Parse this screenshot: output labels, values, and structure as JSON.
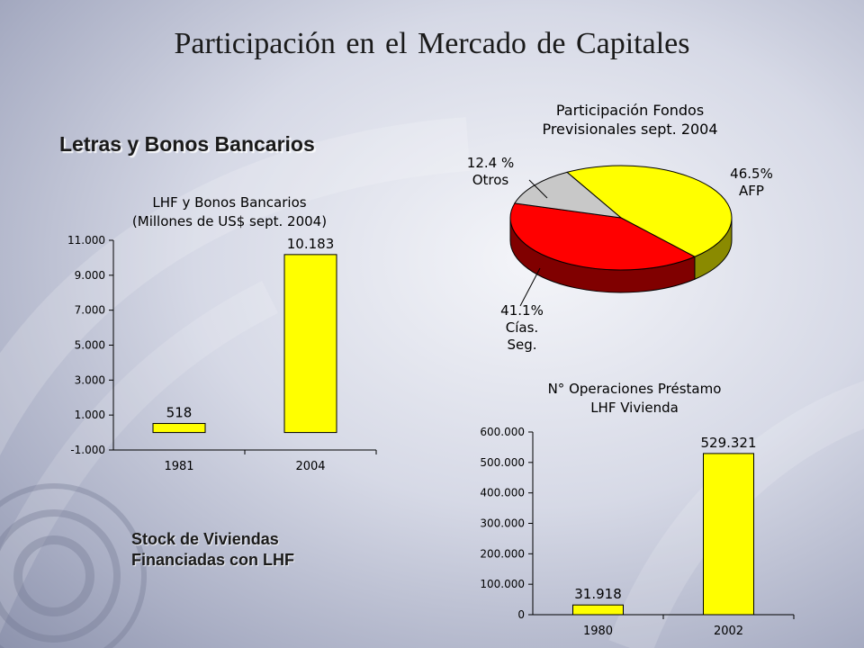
{
  "page": {
    "title": "Participación en el Mercado de Capitales",
    "section_title": "Letras y Bonos Bancarios",
    "stock_label_line1": "Stock de Viviendas",
    "stock_label_line2": "Financiadas con LHF"
  },
  "chart_data": [
    {
      "type": "bar",
      "title_line1": "LHF y Bonos Bancarios",
      "title_line2": "(Millones de  US$ sept. 2004)",
      "categories": [
        "1981",
        "2004"
      ],
      "values": [
        518,
        10183
      ],
      "value_labels": [
        "518",
        "10.183"
      ],
      "ylim": [
        -1000,
        11000
      ],
      "yticks": [
        -1000,
        1000,
        3000,
        5000,
        7000,
        9000,
        11000
      ],
      "ytick_labels": [
        "-1.000",
        "1.000",
        "3.000",
        "5.000",
        "7.000",
        "9.000",
        "11.000"
      ],
      "bar_color": "#ffff00",
      "grid": false
    },
    {
      "type": "pie",
      "title_line1": "Participación Fondos",
      "title_line2": "Previsionales sept. 2004",
      "slices": [
        {
          "label_line1": "46.5%",
          "label_line2": "AFP",
          "value": 46.5,
          "color": "#ffff00",
          "side_color": "#8a8a00"
        },
        {
          "label_line1": "41.1%",
          "label_line2": "Cías.",
          "label_line3": "Seg.",
          "value": 41.1,
          "color": "#ff0000",
          "side_color": "#800000"
        },
        {
          "label_line1": "12.4 %",
          "label_line2": "Otros",
          "value": 12.4,
          "color": "#c8c8c8",
          "side_color": "#7a7a7a"
        }
      ]
    },
    {
      "type": "bar",
      "title_line1": "N° Operaciones Préstamo",
      "title_line2": "LHF Vivienda",
      "categories": [
        "1980",
        "2002"
      ],
      "values": [
        31918,
        529321
      ],
      "value_labels": [
        "31.918",
        "529.321"
      ],
      "ylim": [
        0,
        600000
      ],
      "yticks": [
        0,
        100000,
        200000,
        300000,
        400000,
        500000,
        600000
      ],
      "ytick_labels": [
        "0",
        "100.000",
        "200.000",
        "300.000",
        "400.000",
        "500.000",
        "600.000"
      ],
      "bar_color": "#ffff00",
      "grid": false
    }
  ]
}
